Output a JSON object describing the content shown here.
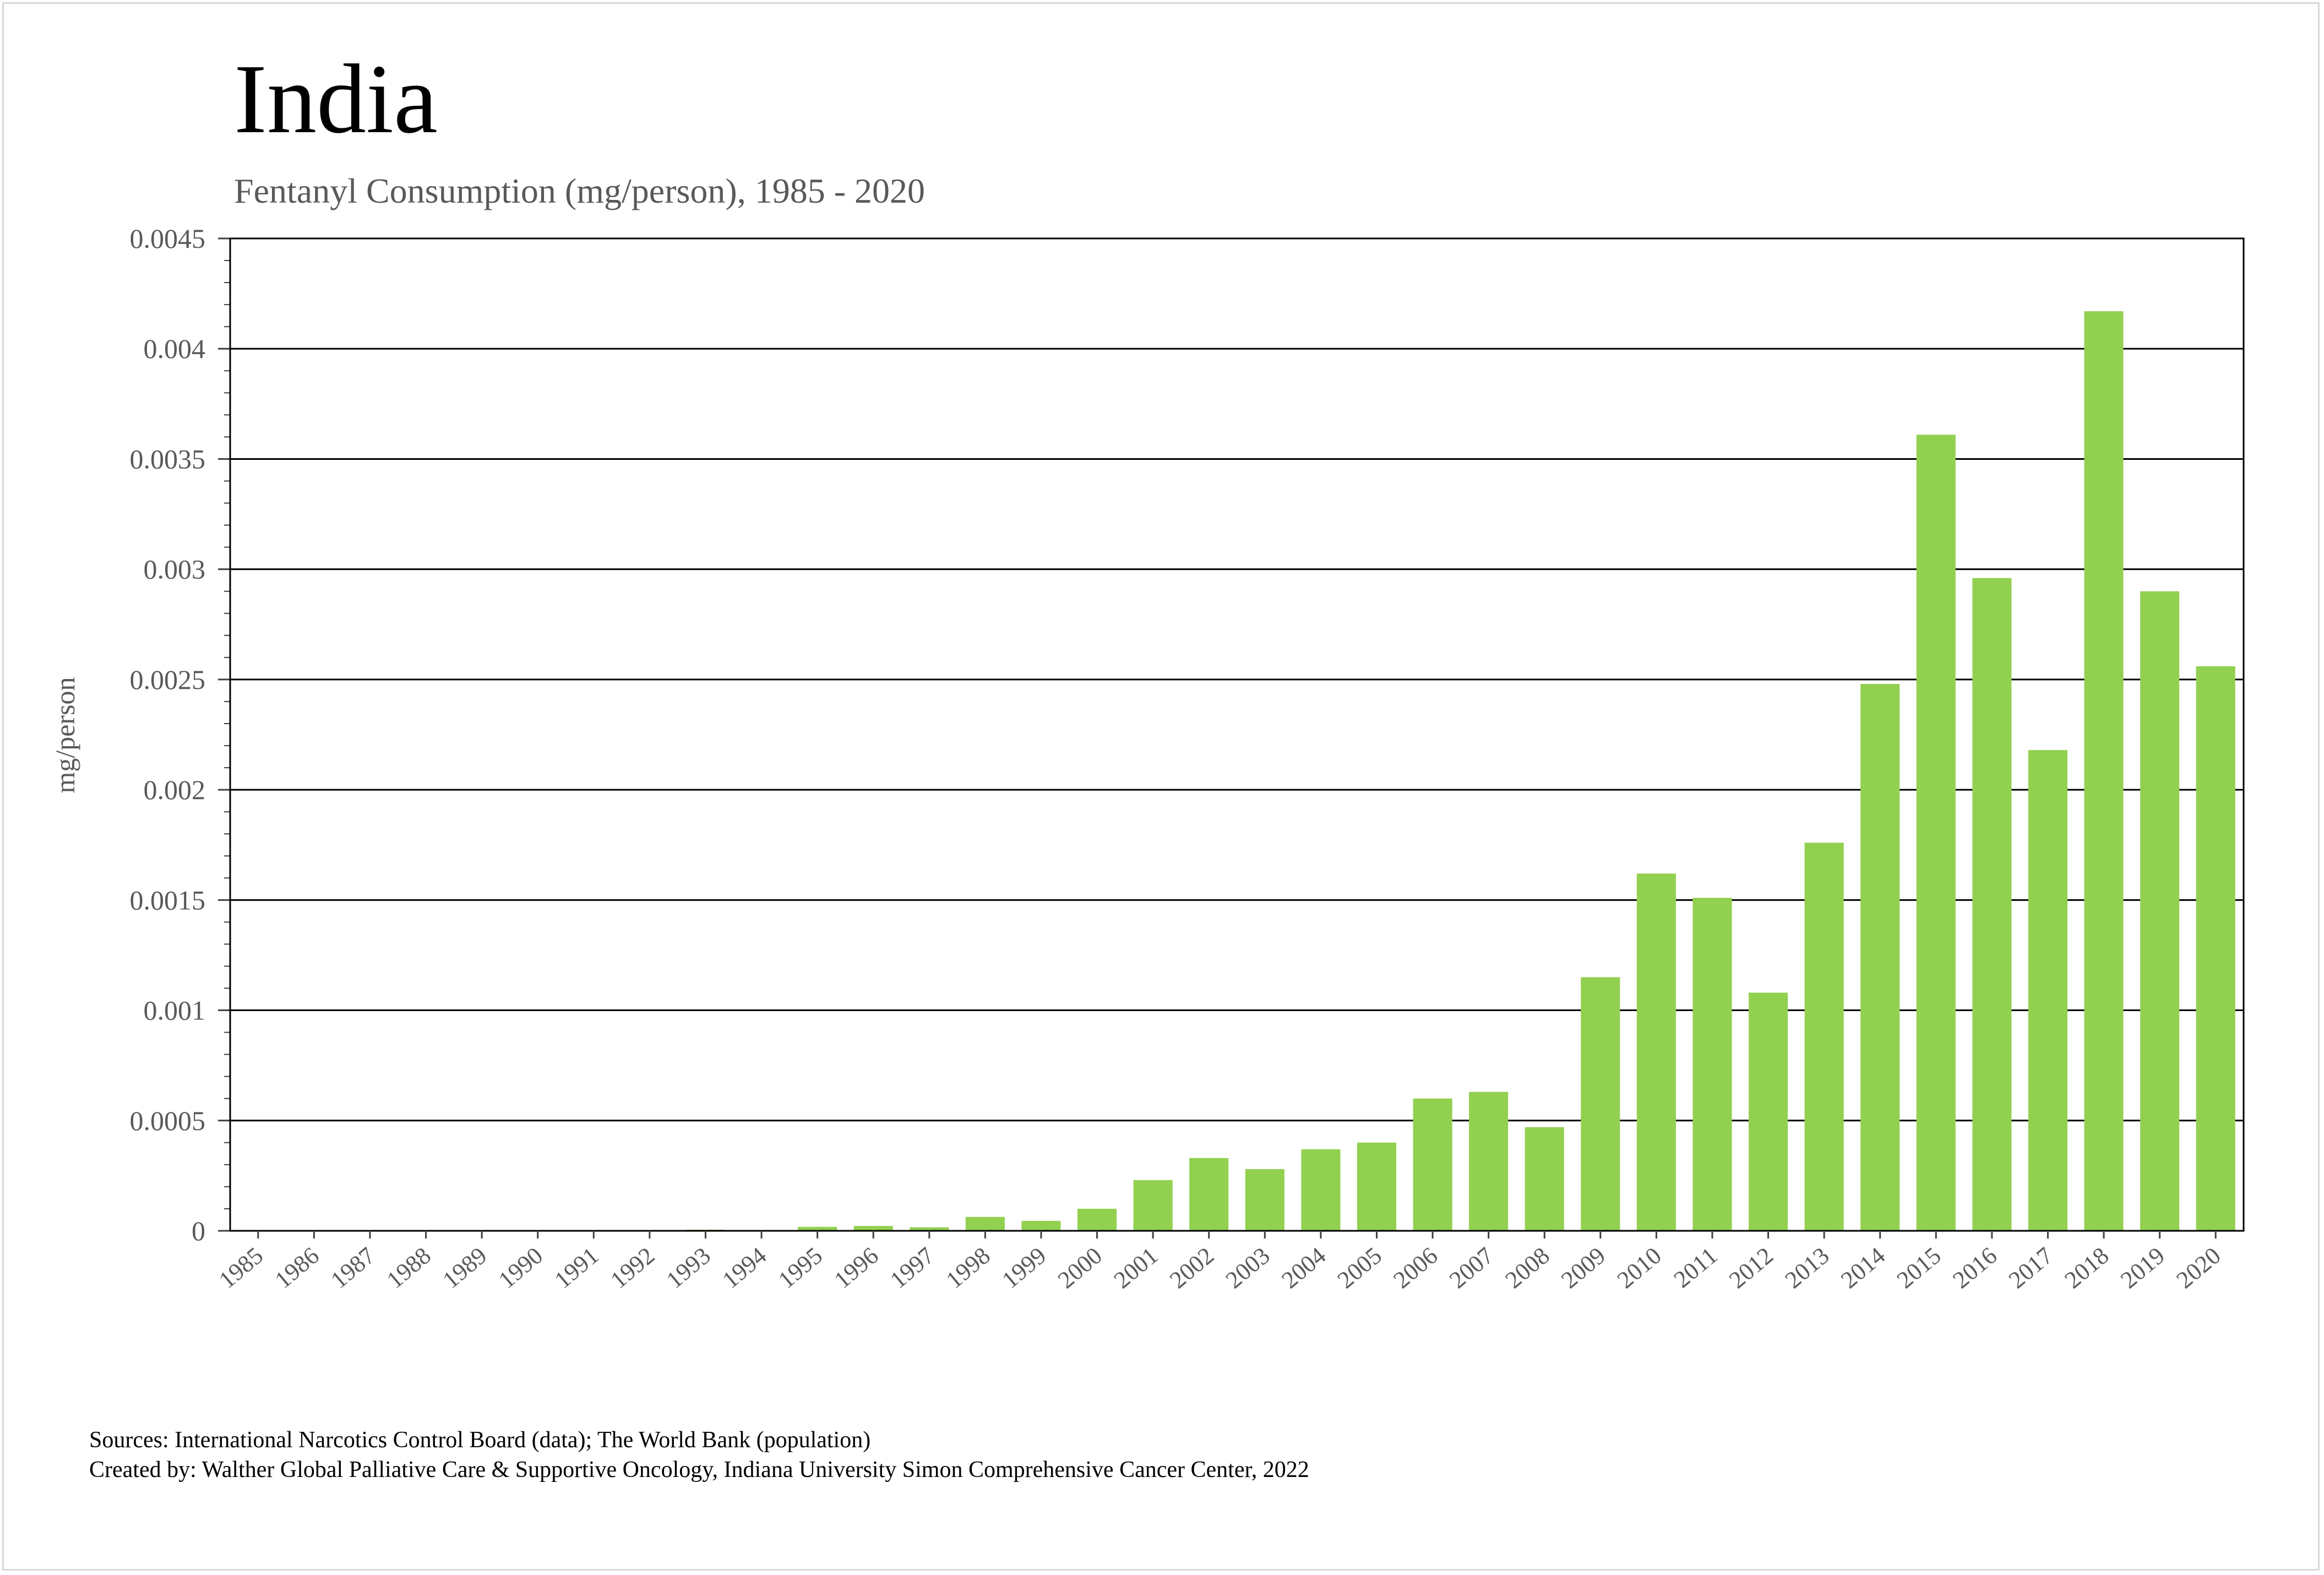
{
  "chart_data": {
    "type": "bar",
    "title": "India",
    "subtitle": "Fentanyl Consumption (mg/person), 1985 - 2020",
    "xlabel": "",
    "ylabel": "mg/person",
    "ylim": [
      0,
      0.0045
    ],
    "yticks": [
      "0",
      "0.0005",
      "0.001",
      "0.0015",
      "0.002",
      "0.0025",
      "0.003",
      "0.0035",
      "0.004",
      "0.0045"
    ],
    "grid": true,
    "bar_color": "#92D050",
    "categories": [
      "1985",
      "1986",
      "1987",
      "1988",
      "1989",
      "1990",
      "1991",
      "1992",
      "1993",
      "1994",
      "1995",
      "1996",
      "1997",
      "1998",
      "1999",
      "2000",
      "2001",
      "2002",
      "2003",
      "2004",
      "2005",
      "2006",
      "2007",
      "2008",
      "2009",
      "2010",
      "2011",
      "2012",
      "2013",
      "2014",
      "2015",
      "2016",
      "2017",
      "2018",
      "2019",
      "2020"
    ],
    "values": [
      0,
      0,
      0,
      0,
      0,
      0,
      0,
      0,
      5e-06,
      0,
      1.8e-05,
      2.2e-05,
      1.6e-05,
      6.3e-05,
      4.5e-05,
      0.0001,
      0.00023,
      0.00033,
      0.00028,
      0.00037,
      0.0004,
      0.0006,
      0.00063,
      0.00047,
      0.00115,
      0.00162,
      0.00151,
      0.00108,
      0.00176,
      0.00248,
      0.00361,
      0.00296,
      0.00218,
      0.00417,
      0.0029,
      0.00256
    ]
  },
  "footer": {
    "sources": "Sources: International Narcotics Control Board (data); The World Bank (population)",
    "created": "Created by: Walther Global Palliative Care & Supportive Oncology, Indiana University Simon Comprehensive Cancer Center, 2022"
  }
}
